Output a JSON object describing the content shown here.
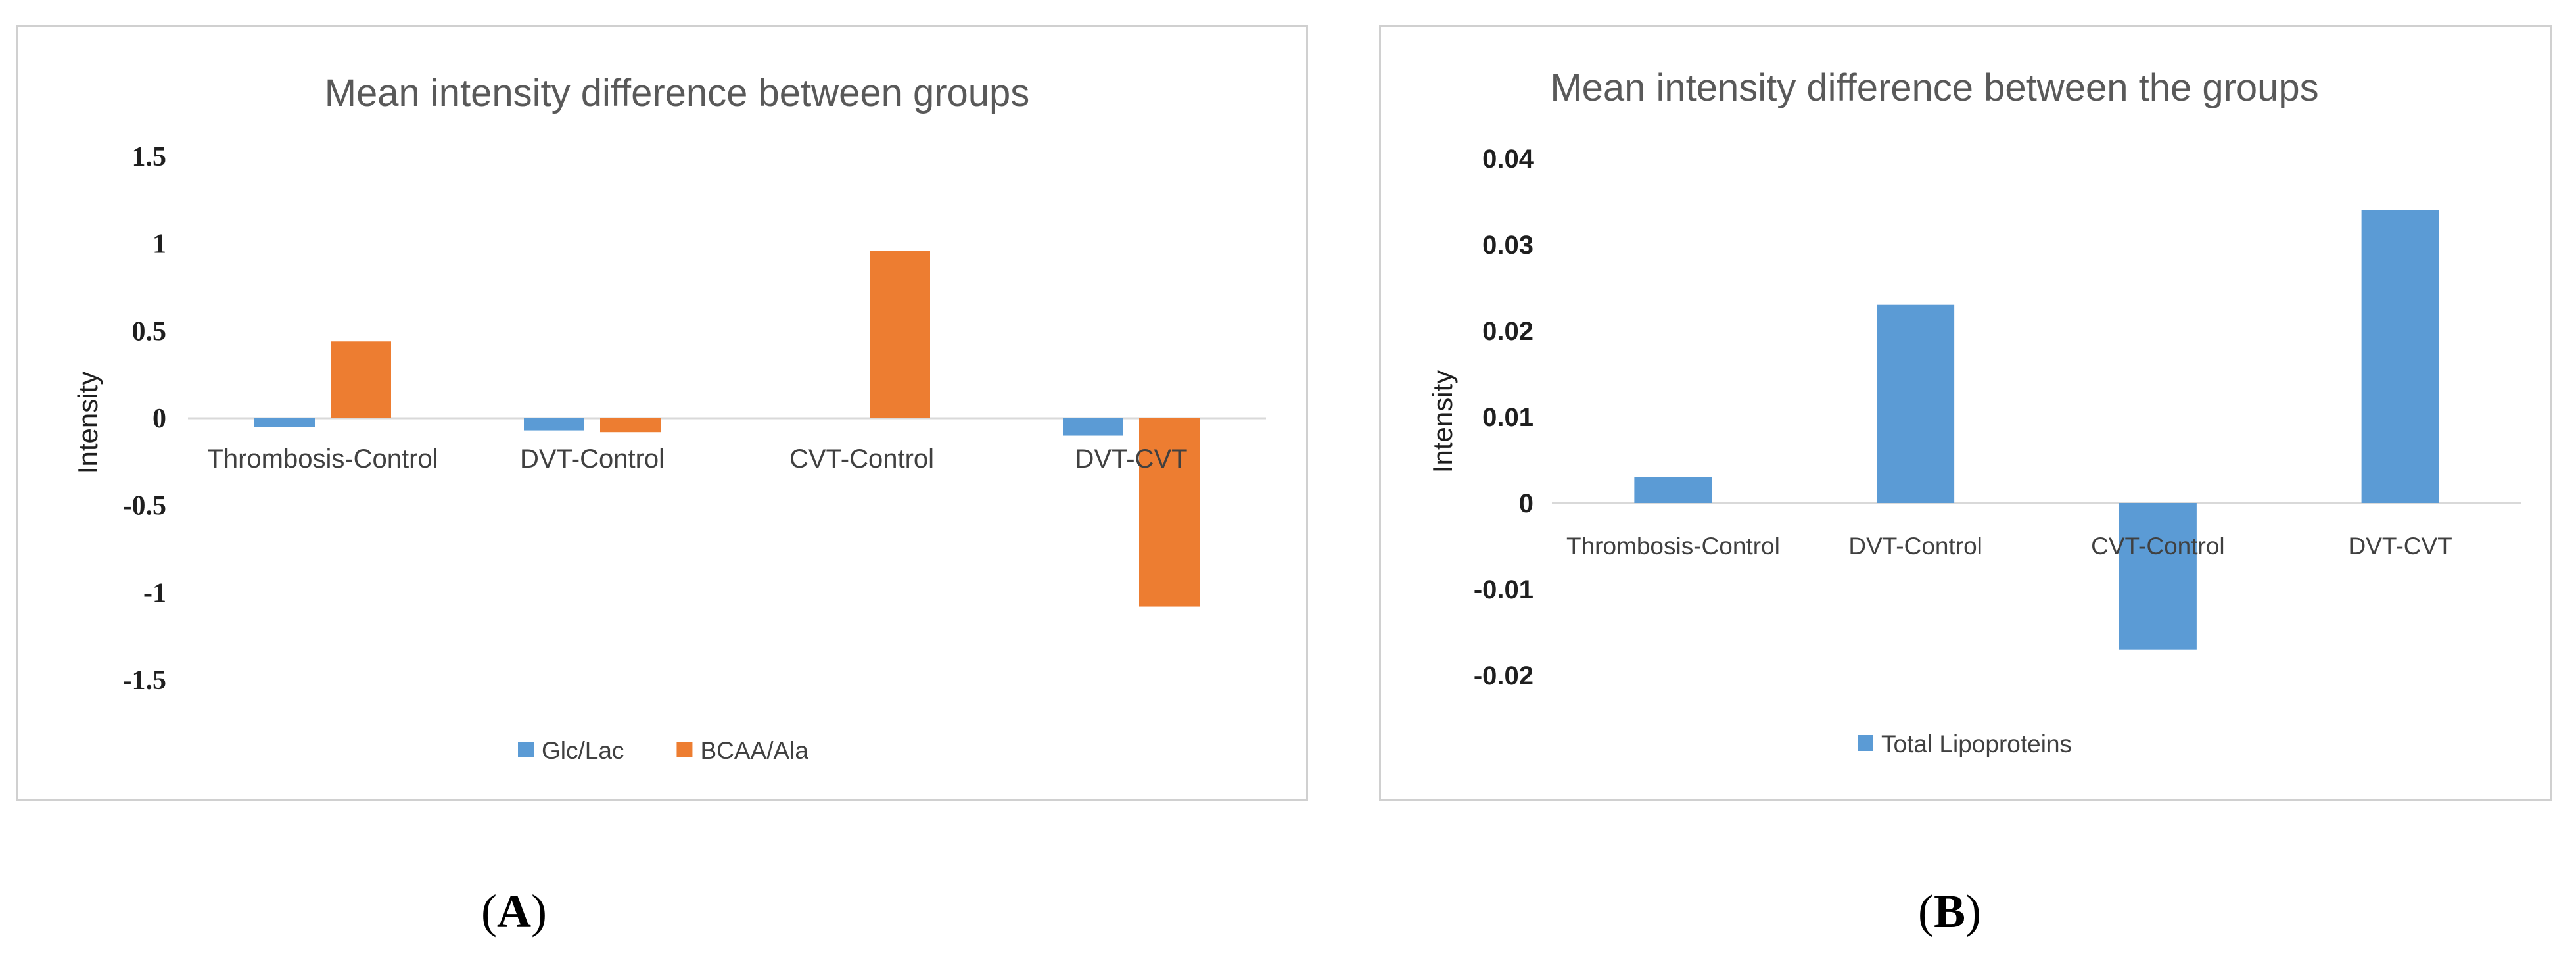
{
  "chart_data": [
    {
      "type": "bar",
      "title": "Mean intensity difference between groups",
      "xlabel": "",
      "ylabel": "Intensity",
      "ylim": [
        -1.5,
        1.5
      ],
      "yticks": [
        "1.5",
        "1",
        "0.5",
        "0",
        "-0.5",
        "-1",
        "-1.5"
      ],
      "ytick_values": [
        1.5,
        1,
        0.5,
        0,
        -0.5,
        -1,
        -1.5
      ],
      "categories": [
        "Thrombosis-Control",
        "DVT-Control",
        "CVT-Control",
        "DVT-CVT"
      ],
      "series": [
        {
          "name": "Glc/Lac",
          "color": "#5b9bd5",
          "values": [
            -0.05,
            -0.07,
            0.0,
            -0.1
          ]
        },
        {
          "name": "BCAA/Ala",
          "color": "#ed7d31",
          "values": [
            0.44,
            -0.08,
            0.96,
            -1.08
          ]
        }
      ],
      "legend": "bottom",
      "grid": false
    },
    {
      "type": "bar",
      "title": "Mean intensity difference between the groups",
      "xlabel": "",
      "ylabel": "Intensity",
      "ylim": [
        -0.02,
        0.04
      ],
      "yticks": [
        "0.04",
        "0.03",
        "0.02",
        "0.01",
        "0",
        "-0.01",
        "-0.02"
      ],
      "ytick_values": [
        0.04,
        0.03,
        0.02,
        0.01,
        0,
        -0.01,
        -0.02
      ],
      "categories": [
        "Thrombosis-Control",
        "DVT-Control",
        "CVT-Control",
        "DVT-CVT"
      ],
      "series": [
        {
          "name": "Total Lipoproteins",
          "color": "#5b9bd5",
          "values": [
            0.003,
            0.023,
            -0.017,
            0.034
          ]
        }
      ],
      "legend": "bottom",
      "grid": false
    }
  ],
  "labels": {
    "a": "A",
    "b": "B"
  }
}
